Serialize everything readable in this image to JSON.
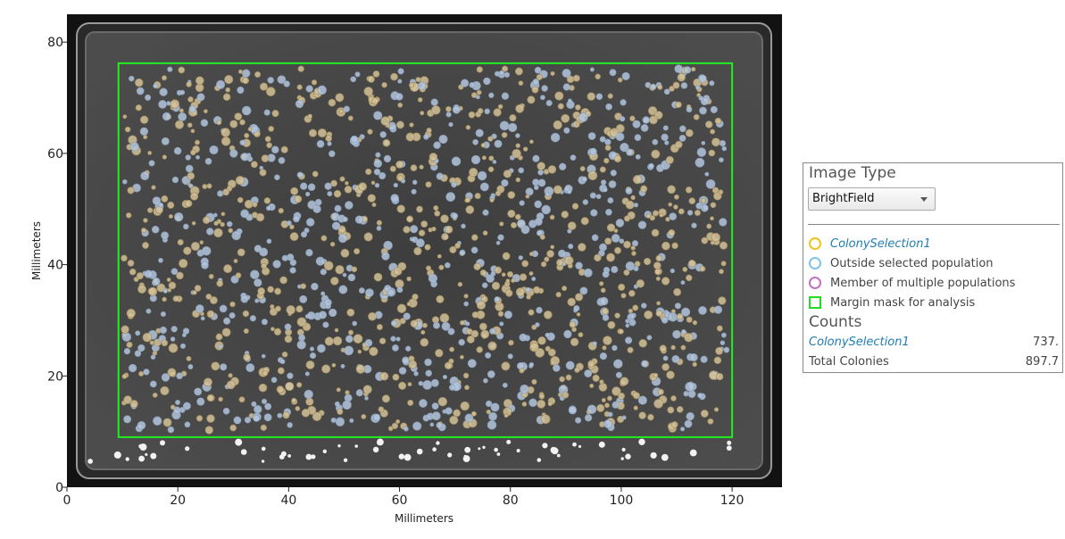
{
  "plot": {
    "xlabel": "Millimeters",
    "ylabel": "Millimeters",
    "x_ticks": [
      "0",
      "20",
      "40",
      "60",
      "80",
      "100",
      "120"
    ],
    "y_ticks": [
      "0",
      "20",
      "40",
      "60",
      "80"
    ],
    "xlim": [
      0,
      129
    ],
    "ylim": [
      0,
      85
    ],
    "margin_mask_mm": {
      "x0": 9.3,
      "x1": 120.0,
      "y0": 9.0,
      "y1": 76.2
    },
    "colors": {
      "selected": "#d4c29a",
      "outside": "#b4c6dc",
      "mask": "#22ee22",
      "plate_dark": "#111111",
      "agar": "#474747"
    }
  },
  "panel": {
    "image_type_heading": "Image Type",
    "image_type_value": "BrightField",
    "legend": [
      {
        "label": "ColonySelection1",
        "marker": "circle",
        "color": "#f2c418",
        "selection": true
      },
      {
        "label": "Outside selected population",
        "marker": "circle",
        "color": "#7ec4ee",
        "selection": false
      },
      {
        "label": "Member of multiple populations",
        "marker": "circle",
        "color": "#c46ec4",
        "selection": false
      },
      {
        "label": "Margin mask for analysis",
        "marker": "square",
        "color": "#22dd22",
        "selection": false
      }
    ],
    "counts_heading": "Counts",
    "counts": [
      {
        "name": "ColonySelection1",
        "value": "737.",
        "selection": true
      },
      {
        "name": "Total Colonies",
        "value": "897.7",
        "selection": false
      }
    ]
  }
}
